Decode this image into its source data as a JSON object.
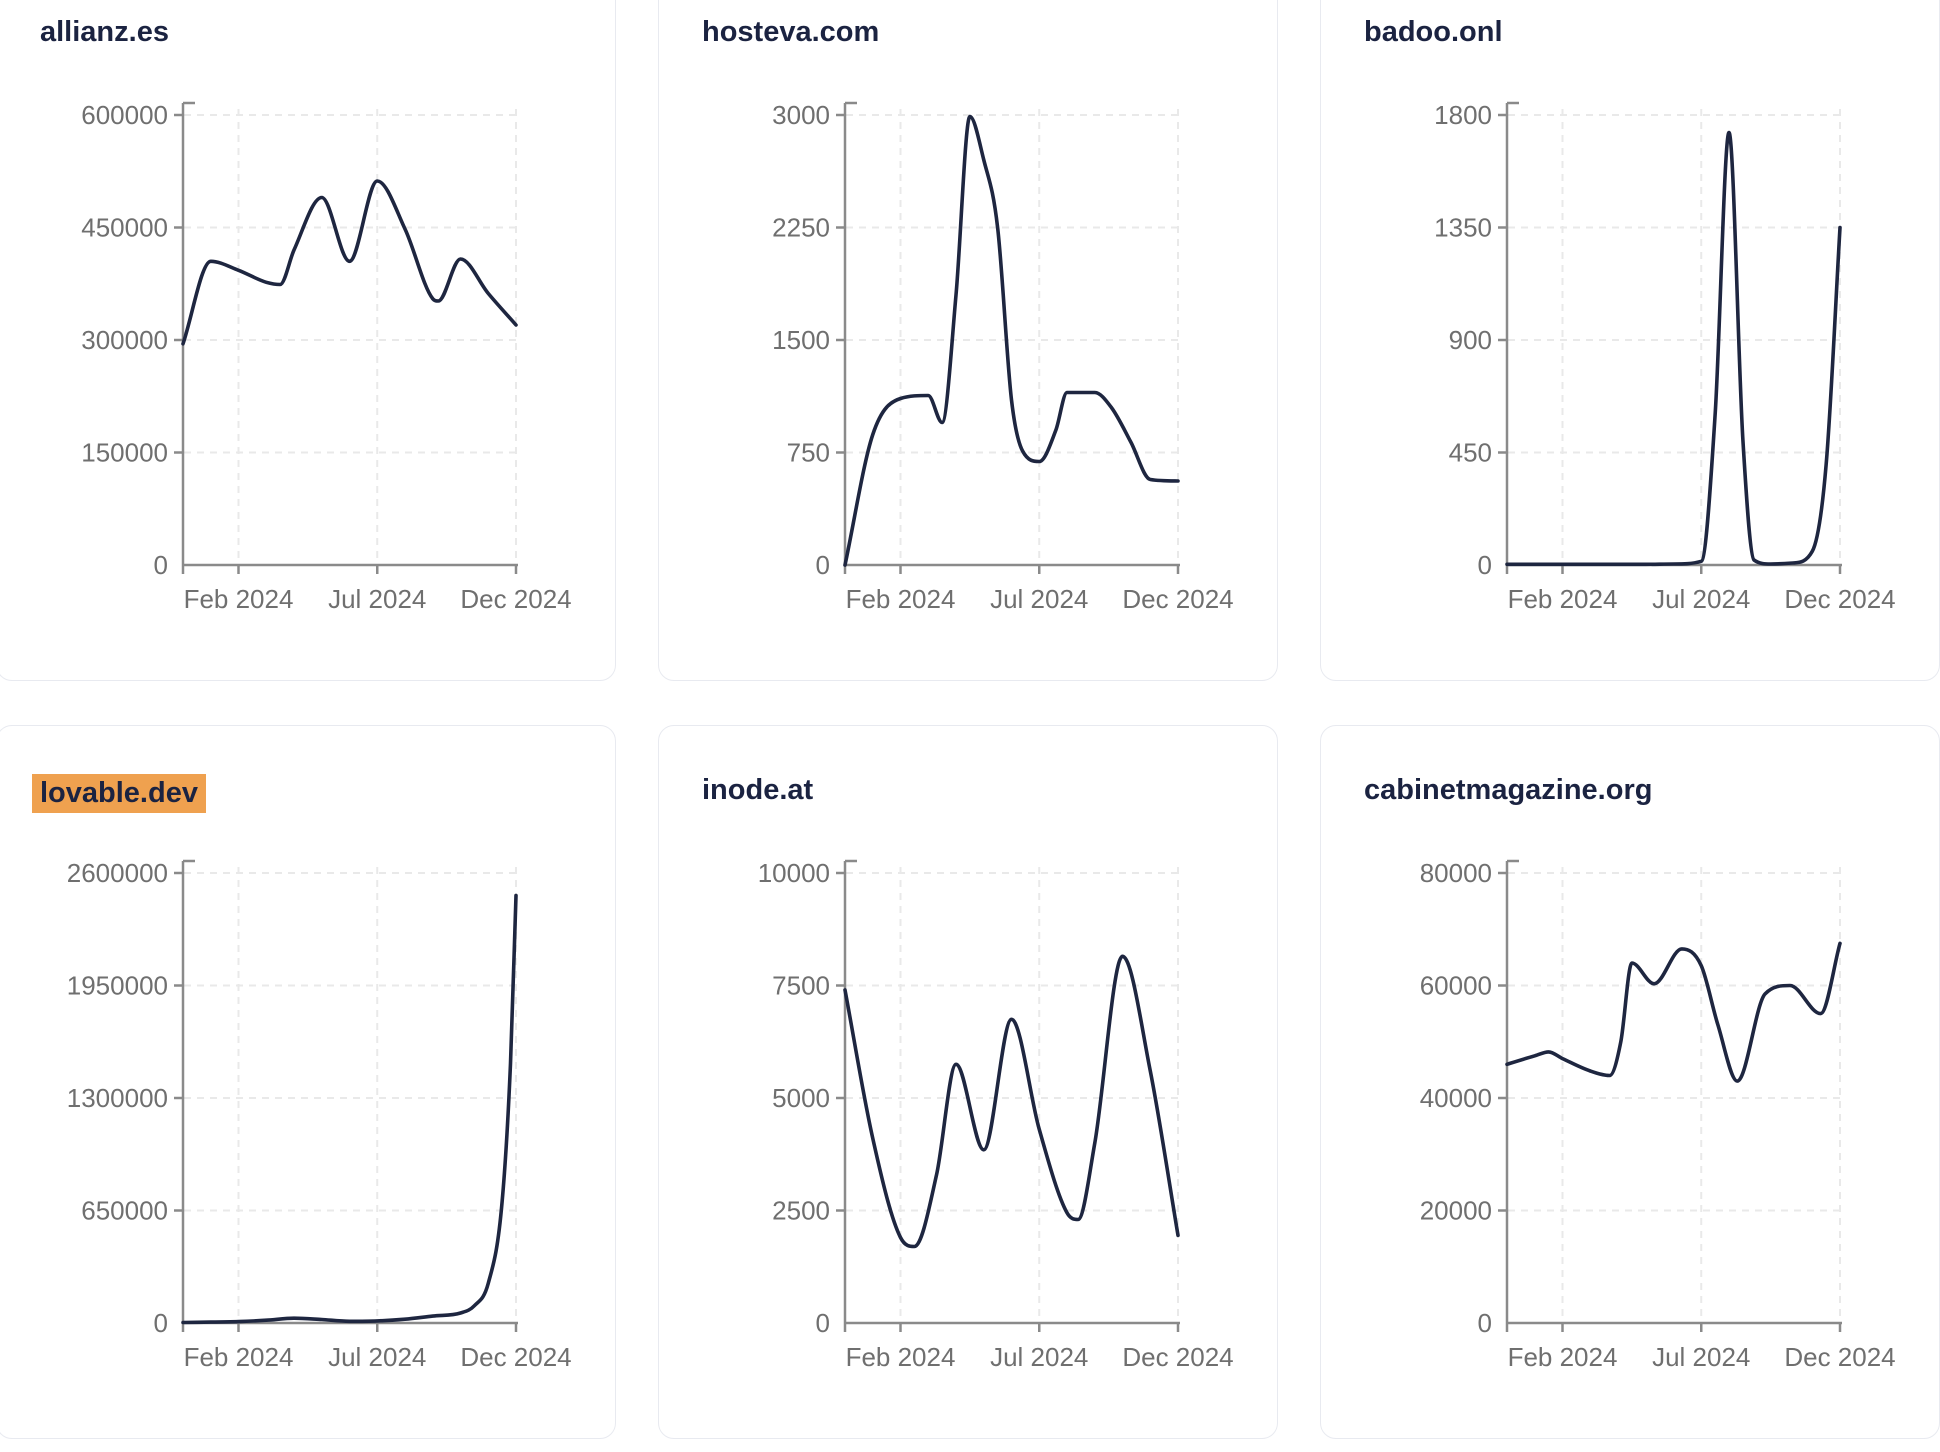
{
  "page": {
    "background": "#ffffff"
  },
  "colors": {
    "line": "#1e2640",
    "title": "#1b2341",
    "axis": "#8a8a8a",
    "tick_text": "#6f6f6f",
    "grid": "#e9e9e9",
    "card_border": "#e8eaf0",
    "card_bg": "#ffffff",
    "highlight_bg": "#efa14f"
  },
  "x_axis": {
    "domain_months": [
      "Dec 2023",
      "Dec 2024"
    ],
    "tick_labels": [
      "Feb 2024",
      "Jul 2024",
      "Dec 2024"
    ],
    "tick_month_offsets": [
      2,
      7,
      12
    ]
  },
  "chart_data": [
    {
      "type": "line",
      "title": "allianz.es",
      "highlighted": false,
      "ylim": [
        0,
        600000
      ],
      "y_ticks": [
        0,
        150000,
        300000,
        450000,
        600000
      ],
      "x_tick_labels": [
        "Feb 2024",
        "Jul 2024",
        "Dec 2024"
      ],
      "grid": true,
      "points": [
        [
          0,
          295000
        ],
        [
          1,
          405000
        ],
        [
          2,
          393000
        ],
        [
          3,
          377000
        ],
        [
          3.5,
          374000
        ],
        [
          4,
          420000
        ],
        [
          5,
          490000
        ],
        [
          6,
          405000
        ],
        [
          7,
          512000
        ],
        [
          8,
          448000
        ],
        [
          9,
          355000
        ],
        [
          9.2,
          352000
        ],
        [
          10,
          408000
        ],
        [
          11,
          362000
        ],
        [
          12,
          320000
        ]
      ]
    },
    {
      "type": "line",
      "title": "hosteva.com",
      "highlighted": false,
      "ylim": [
        0,
        3000
      ],
      "y_ticks": [
        0,
        750,
        1500,
        2250,
        3000
      ],
      "x_tick_labels": [
        "Feb 2024",
        "Jul 2024",
        "Dec 2024"
      ],
      "grid": true,
      "points": [
        [
          0,
          0
        ],
        [
          1,
          870
        ],
        [
          2,
          1110
        ],
        [
          3,
          1130
        ],
        [
          3.5,
          950
        ],
        [
          4,
          1800
        ],
        [
          4.5,
          2990
        ],
        [
          5,
          2700
        ],
        [
          5.5,
          2250
        ],
        [
          6,
          1100
        ],
        [
          6.4,
          760
        ],
        [
          7,
          690
        ],
        [
          7.6,
          900
        ],
        [
          8,
          1150
        ],
        [
          9,
          1150
        ],
        [
          9.6,
          1050
        ],
        [
          10.3,
          820
        ],
        [
          11,
          570
        ],
        [
          12,
          560
        ]
      ]
    },
    {
      "type": "line",
      "title": "badoo.onl",
      "highlighted": false,
      "ylim": [
        0,
        1800
      ],
      "y_ticks": [
        0,
        450,
        900,
        1350,
        1800
      ],
      "x_tick_labels": [
        "Feb 2024",
        "Jul 2024",
        "Dec 2024"
      ],
      "grid": true,
      "points": [
        [
          0,
          3
        ],
        [
          1,
          3
        ],
        [
          2,
          3
        ],
        [
          3,
          3
        ],
        [
          4,
          3
        ],
        [
          5,
          3
        ],
        [
          6,
          4
        ],
        [
          7,
          15
        ],
        [
          7.5,
          600
        ],
        [
          8,
          1730
        ],
        [
          8.5,
          500
        ],
        [
          8.9,
          20
        ],
        [
          9.5,
          4
        ],
        [
          10.3,
          8
        ],
        [
          11,
          55
        ],
        [
          11.5,
          400
        ],
        [
          12,
          1350
        ]
      ]
    },
    {
      "type": "line",
      "title": "lovable.dev",
      "highlighted": true,
      "ylim": [
        0,
        2600000
      ],
      "y_ticks": [
        0,
        650000,
        1300000,
        1950000,
        2600000
      ],
      "x_tick_labels": [
        "Feb 2024",
        "Jul 2024",
        "Dec 2024"
      ],
      "grid": true,
      "points": [
        [
          0,
          3000
        ],
        [
          1,
          5000
        ],
        [
          2,
          8000
        ],
        [
          3,
          16000
        ],
        [
          4,
          28000
        ],
        [
          5,
          20000
        ],
        [
          6,
          10000
        ],
        [
          7,
          12000
        ],
        [
          8,
          22000
        ],
        [
          9,
          40000
        ],
        [
          10,
          58000
        ],
        [
          10.5,
          100000
        ],
        [
          11,
          230000
        ],
        [
          11.5,
          700000
        ],
        [
          11.8,
          1500000
        ],
        [
          12,
          2470000
        ]
      ]
    },
    {
      "type": "line",
      "title": "inode.at",
      "highlighted": false,
      "ylim": [
        0,
        10000
      ],
      "y_ticks": [
        0,
        2500,
        5000,
        7500,
        10000
      ],
      "x_tick_labels": [
        "Feb 2024",
        "Jul 2024",
        "Dec 2024"
      ],
      "grid": true,
      "points": [
        [
          0,
          7400
        ],
        [
          1,
          4100
        ],
        [
          2,
          1900
        ],
        [
          2.5,
          1700
        ],
        [
          3.3,
          3300
        ],
        [
          4,
          5750
        ],
        [
          5,
          3850
        ],
        [
          6,
          6750
        ],
        [
          7,
          4300
        ],
        [
          8,
          2450
        ],
        [
          8.4,
          2300
        ],
        [
          9,
          4000
        ],
        [
          10,
          8150
        ],
        [
          11,
          5600
        ],
        [
          12,
          1950
        ]
      ]
    },
    {
      "type": "line",
      "title": "cabinetmagazine.org",
      "highlighted": false,
      "ylim": [
        0,
        80000
      ],
      "y_ticks": [
        0,
        20000,
        40000,
        60000,
        80000
      ],
      "x_tick_labels": [
        "Feb 2024",
        "Jul 2024",
        "Dec 2024"
      ],
      "grid": true,
      "points": [
        [
          0,
          46000
        ],
        [
          1,
          47500
        ],
        [
          1.5,
          48200
        ],
        [
          2,
          47000
        ],
        [
          3,
          44800
        ],
        [
          3.7,
          44000
        ],
        [
          4.1,
          50000
        ],
        [
          4.5,
          64000
        ],
        [
          5.3,
          60300
        ],
        [
          6.3,
          66500
        ],
        [
          7,
          63500
        ],
        [
          7.6,
          53000
        ],
        [
          8.3,
          43000
        ],
        [
          9.3,
          58500
        ],
        [
          10.2,
          60000
        ],
        [
          11.3,
          55000
        ],
        [
          12,
          67500
        ]
      ]
    }
  ]
}
